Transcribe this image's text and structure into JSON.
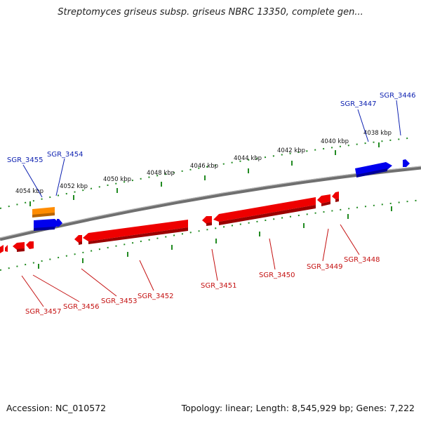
{
  "title": "Streptomyces griseus subsp. griseus NBRC 13350, complete gen...",
  "accession": "Accession: NC_010572",
  "topology": "Topology: linear; Length: 8,545,929 bp; Genes: 7,222",
  "colors": {
    "forward": "#0000ee",
    "reverse": "#ee0000",
    "rna": "#ff8c00",
    "ticks": "#228b22",
    "backbone": "#777777"
  },
  "kbp_labels": [
    "4054 kbp",
    "4052 kbp",
    "4050 kbp",
    "4048 kbp",
    "4046 kbp",
    "4044 kbp",
    "4042 kbp",
    "4040 kbp",
    "4038 kbp"
  ],
  "forward_genes": [
    "SGR_3455",
    "SGR_3454",
    "SGR_3447",
    "SGR_3446"
  ],
  "reverse_genes": [
    "SGR_3457",
    "SGR_3456",
    "SGR_3453",
    "SGR_3452",
    "SGR_3451",
    "SGR_3450",
    "SGR_3449",
    "SGR_3448"
  ]
}
